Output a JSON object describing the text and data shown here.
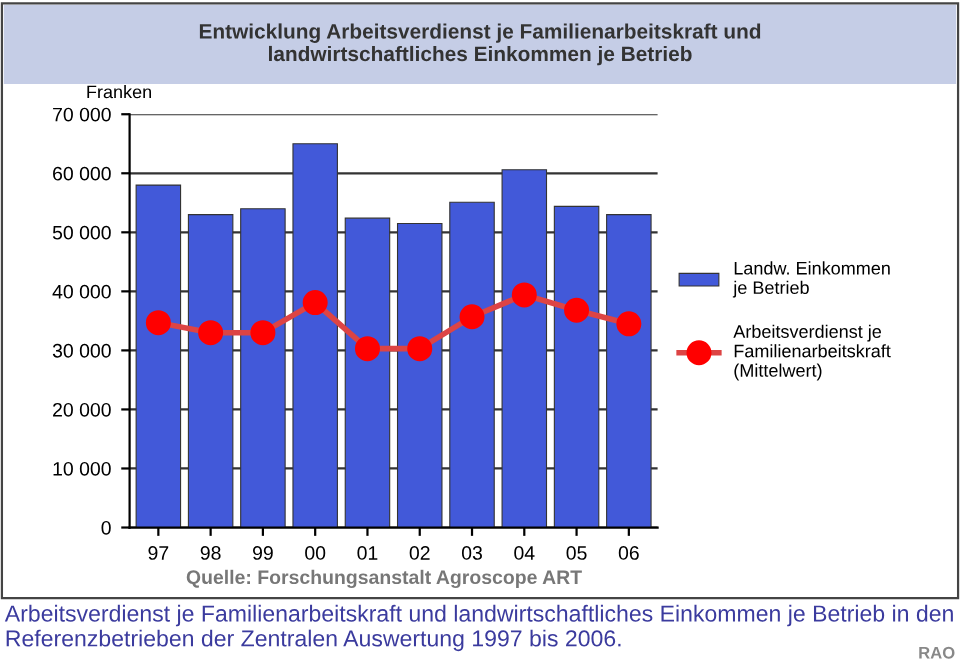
{
  "chart_data": {
    "type": "bar",
    "title": "Entwicklung Arbeitsverdienst je Familienarbeitskraft und\nlandwirtschaftliches Einkommen je Betrieb",
    "ylabel": "Franken",
    "categories": [
      "97",
      "98",
      "99",
      "00",
      "01",
      "02",
      "03",
      "04",
      "05",
      "06"
    ],
    "series": [
      {
        "name": "Landw. Einkommen\nje Betrieb",
        "color": "#4259d9",
        "values": [
          58000,
          53000,
          54000,
          65000,
          52400,
          51500,
          55100,
          60600,
          54400,
          53000
        ]
      },
      {
        "name": "Arbeitsverdienst je\nFamilienarbeitskraft\n(Mittelwert)",
        "type": "line",
        "color": "#ff0000",
        "marker": "circle",
        "values": [
          34700,
          33000,
          33000,
          38100,
          30300,
          30300,
          35700,
          39400,
          36800,
          34500
        ]
      }
    ],
    "ylim": [
      0,
      70000
    ],
    "yticks": [
      {
        "value": 0,
        "label": "0"
      },
      {
        "value": 10000,
        "label": "10 000"
      },
      {
        "value": 20000,
        "label": "20 000"
      },
      {
        "value": 30000,
        "label": "30 000"
      },
      {
        "value": 40000,
        "label": "40 000"
      },
      {
        "value": 50000,
        "label": "50 000"
      },
      {
        "value": 60000,
        "label": "60 000"
      },
      {
        "value": 70000,
        "label": "70 000"
      }
    ],
    "grid": "y",
    "legend": "right",
    "annotations": [
      "Quelle: Forschungsanstalt Agroscope ART",
      "Arbeitsverdienst je Familienarbeitskraft und landwirtschaftliches Einkommen je Betrieb in den Referenzbetrieben der Zentralen Auswertung 1997 bis 2006.",
      "RAO"
    ]
  }
}
